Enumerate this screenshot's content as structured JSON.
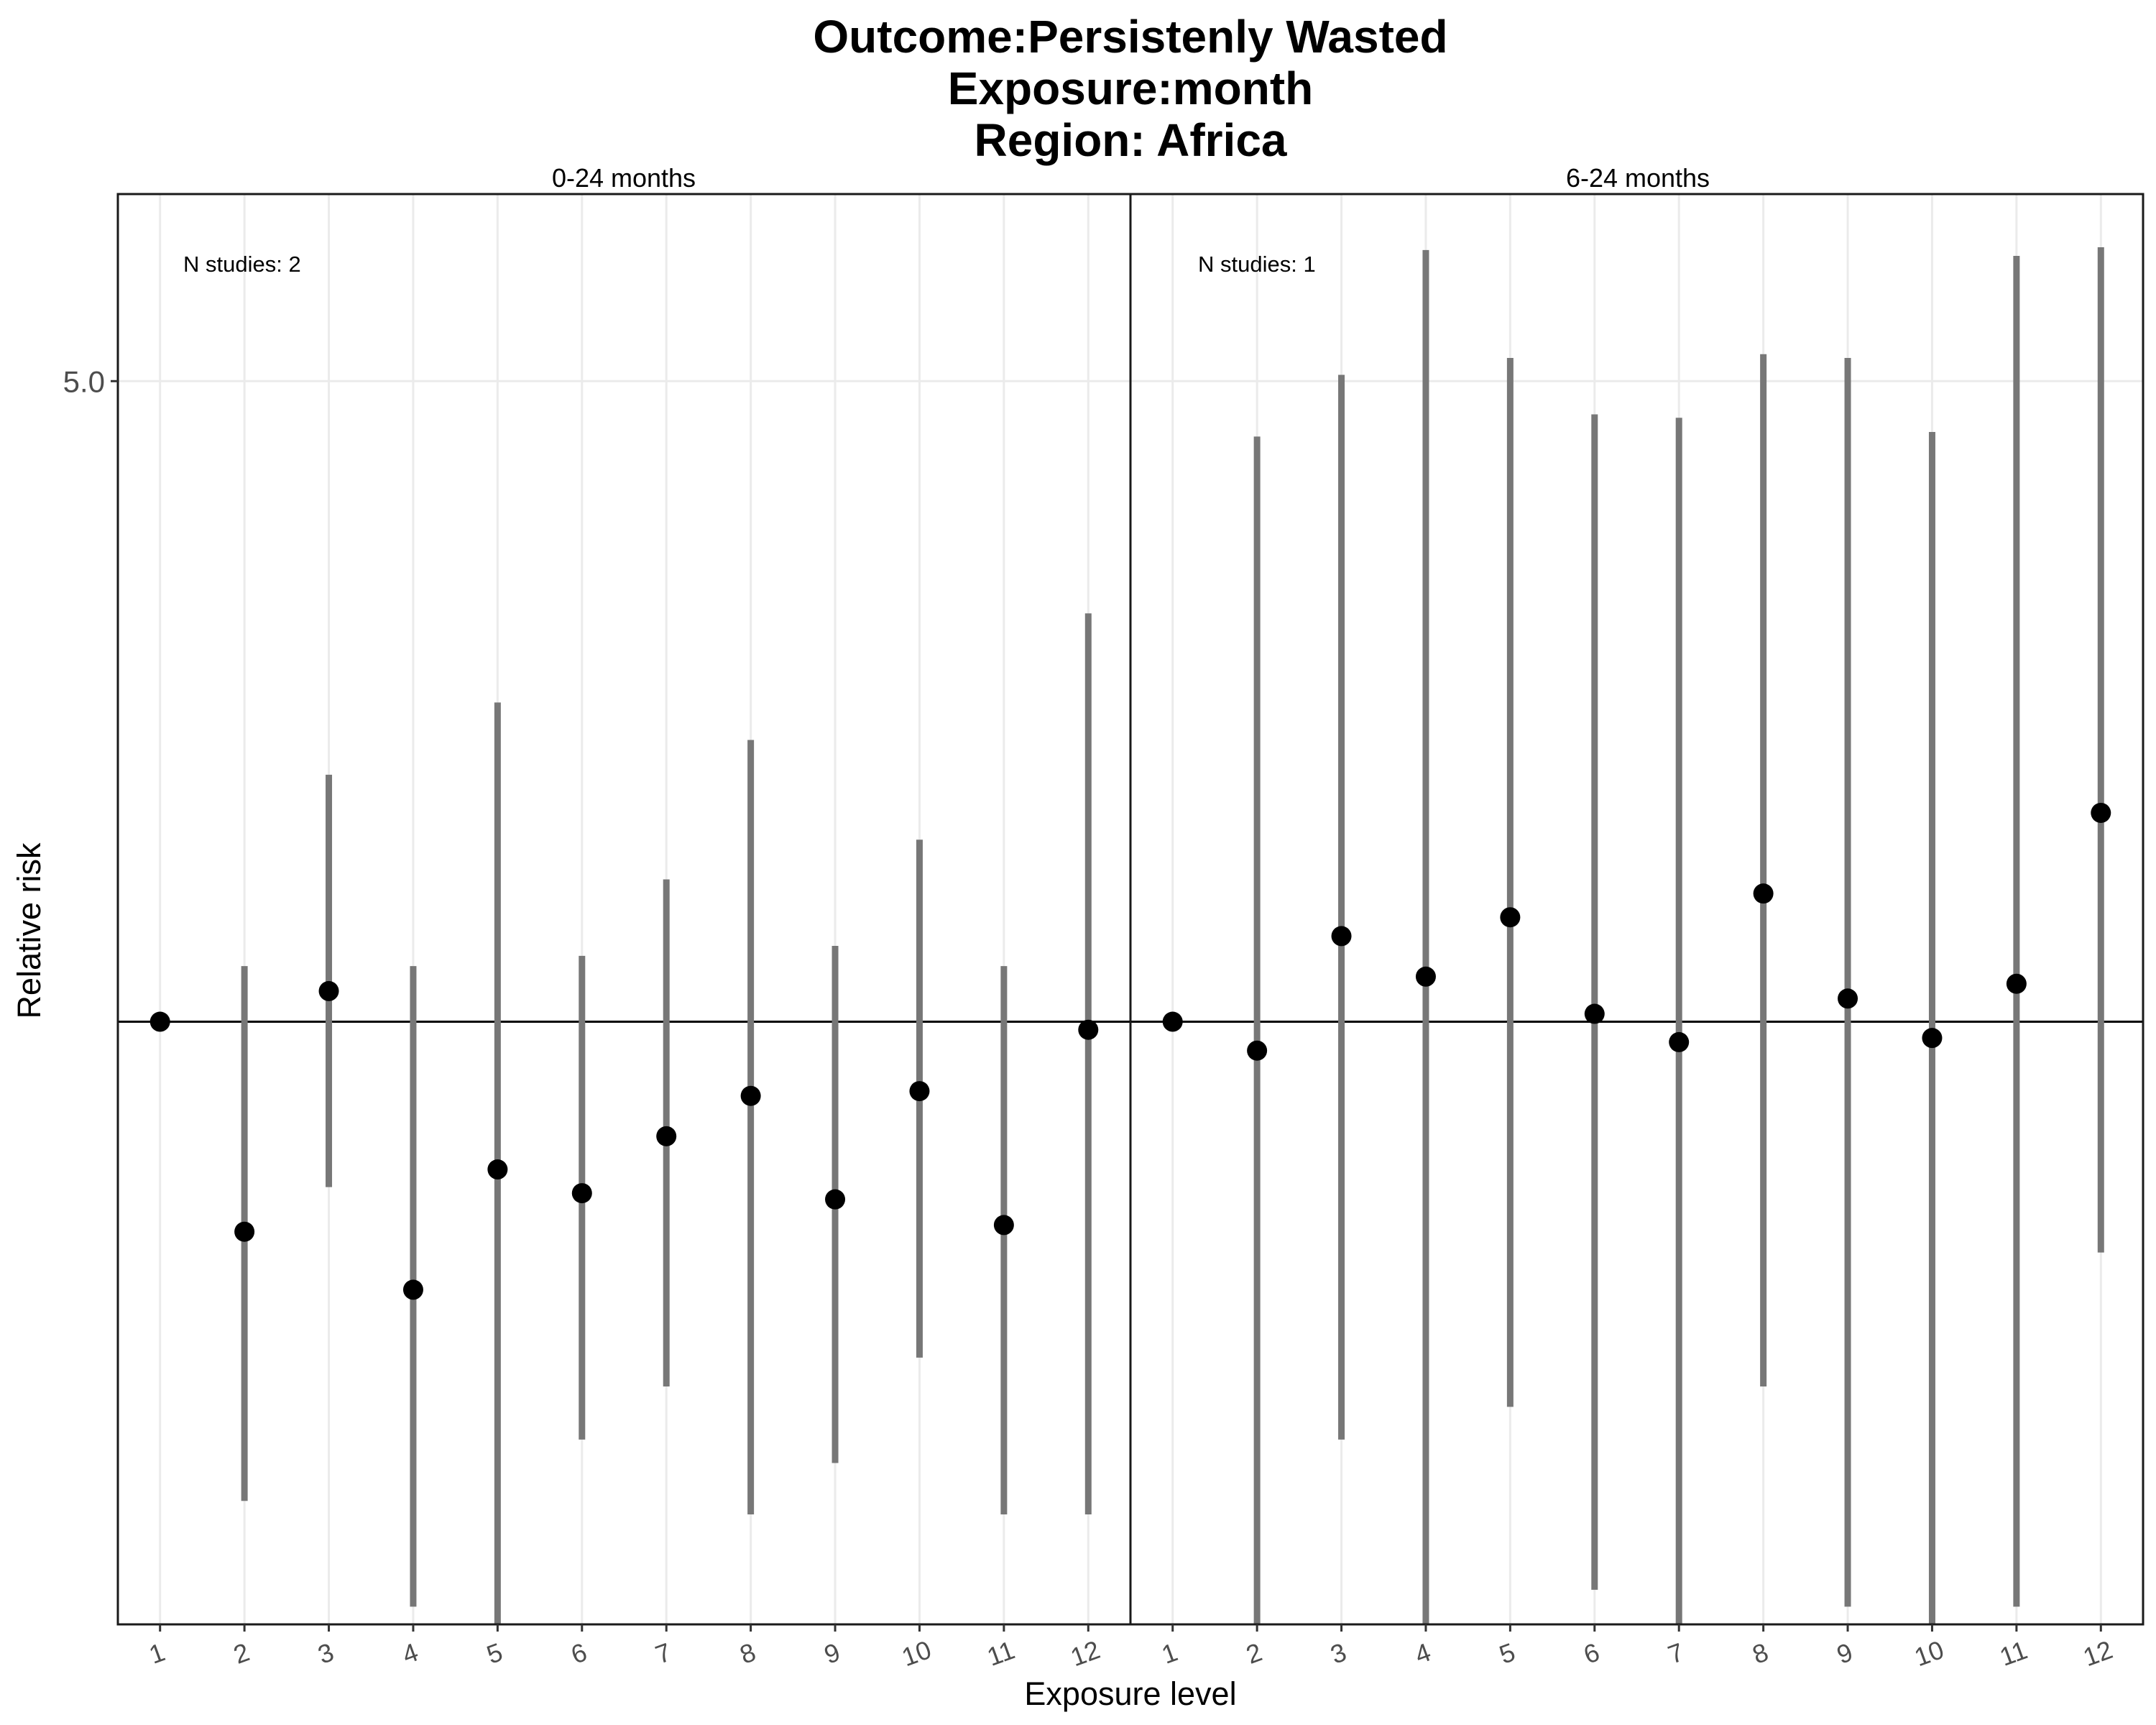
{
  "chart_data": {
    "type": "scatter",
    "title": [
      "Outcome:Persistenly Wasted",
      "Exposure:month",
      "Region: Africa"
    ],
    "xlabel": "Exposure level",
    "ylabel": "Relative risk",
    "y_scale": "log",
    "y_ticks": [
      {
        "value": 5.0,
        "label": "5.0"
      }
    ],
    "ylim": [
      0.22,
      8.0
    ],
    "reference_line": 1.0,
    "categories": [
      "1",
      "2",
      "3",
      "4",
      "5",
      "6",
      "7",
      "8",
      "9",
      "10",
      "11",
      "12"
    ],
    "grid": true,
    "panels": [
      {
        "label": "0-24 months",
        "annotation": "N studies: 2",
        "points": [
          {
            "x": "1",
            "y": 1.0,
            "lower": 1.0,
            "upper": 1.0
          },
          {
            "x": "2",
            "y": 0.59,
            "lower": 0.3,
            "upper": 1.15
          },
          {
            "x": "3",
            "y": 1.08,
            "lower": 0.66,
            "upper": 1.86
          },
          {
            "x": "4",
            "y": 0.51,
            "lower": 0.23,
            "upper": 1.15
          },
          {
            "x": "5",
            "y": 0.69,
            "lower": 0.22,
            "upper": 2.23
          },
          {
            "x": "6",
            "y": 0.65,
            "lower": 0.35,
            "upper": 1.18
          },
          {
            "x": "7",
            "y": 0.75,
            "lower": 0.4,
            "upper": 1.43
          },
          {
            "x": "8",
            "y": 0.83,
            "lower": 0.29,
            "upper": 2.03
          },
          {
            "x": "9",
            "y": 0.64,
            "lower": 0.33,
            "upper": 1.21
          },
          {
            "x": "10",
            "y": 0.84,
            "lower": 0.43,
            "upper": 1.58
          },
          {
            "x": "11",
            "y": 0.6,
            "lower": 0.29,
            "upper": 1.15
          },
          {
            "x": "12",
            "y": 0.98,
            "lower": 0.29,
            "upper": 2.79
          }
        ]
      },
      {
        "label": "6-24 months",
        "annotation": "N studies: 1",
        "points": [
          {
            "x": "1",
            "y": 1.0,
            "lower": 1.0,
            "upper": 1.0
          },
          {
            "x": "2",
            "y": 0.93,
            "lower": 0.22,
            "upper": 4.35
          },
          {
            "x": "3",
            "y": 1.24,
            "lower": 0.35,
            "upper": 5.08
          },
          {
            "x": "4",
            "y": 1.12,
            "lower": 0.22,
            "upper": 6.95
          },
          {
            "x": "5",
            "y": 1.3,
            "lower": 0.38,
            "upper": 5.3
          },
          {
            "x": "6",
            "y": 1.02,
            "lower": 0.24,
            "upper": 4.6
          },
          {
            "x": "7",
            "y": 0.95,
            "lower": 0.22,
            "upper": 4.56
          },
          {
            "x": "8",
            "y": 1.38,
            "lower": 0.4,
            "upper": 5.35
          },
          {
            "x": "9",
            "y": 1.06,
            "lower": 0.23,
            "upper": 5.3
          },
          {
            "x": "10",
            "y": 0.96,
            "lower": 0.22,
            "upper": 4.4
          },
          {
            "x": "11",
            "y": 1.1,
            "lower": 0.23,
            "upper": 6.85
          },
          {
            "x": "12",
            "y": 1.69,
            "lower": 0.56,
            "upper": 7.0
          }
        ]
      }
    ]
  }
}
